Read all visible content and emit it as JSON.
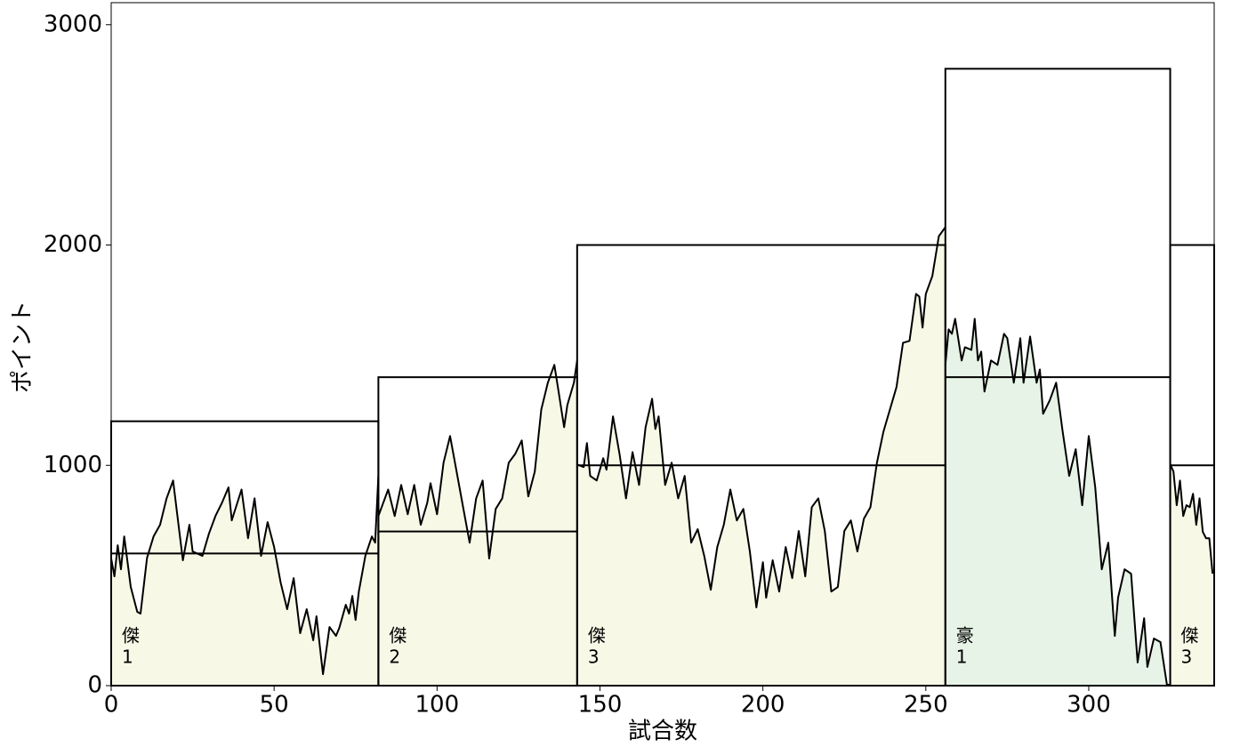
{
  "chart_data": {
    "type": "rank-line",
    "x_label": "試合数",
    "y_label": "ポイント",
    "xlim": [
      0,
      338.5
    ],
    "ylim": [
      0,
      3100
    ],
    "xticks": [
      0,
      50,
      100,
      150,
      200,
      250,
      300
    ],
    "yticks": [
      0,
      1000,
      2000,
      3000
    ],
    "line_color": "#000000",
    "segments": [
      {
        "rank": "傑",
        "level": 1,
        "start": 0,
        "end": 82,
        "top": 1200,
        "base": 600,
        "color": "#f7f8e6",
        "x": [
          0,
          1,
          2,
          3,
          4,
          6,
          8,
          9,
          11,
          13,
          15,
          17,
          19,
          20,
          22,
          24,
          25,
          28,
          30,
          32,
          34,
          36,
          37,
          40,
          42,
          44,
          46,
          48,
          50,
          52,
          54,
          56,
          58,
          60,
          62,
          63,
          65,
          67,
          69,
          70,
          72,
          73,
          74,
          75,
          76,
          78,
          80,
          81,
          82
        ],
        "values": [
          577,
          496,
          637,
          528,
          677,
          448,
          335,
          327,
          580,
          677,
          730,
          850,
          931,
          810,
          569,
          730,
          609,
          589,
          690,
          770,
          830,
          900,
          750,
          890,
          669,
          850,
          589,
          742,
          629,
          468,
          347,
          488,
          238,
          347,
          206,
          315,
          52,
          266,
          226,
          262,
          367,
          327,
          407,
          298,
          427,
          589,
          677,
          649,
          952
        ]
      },
      {
        "rank": "傑",
        "level": 2,
        "start": 82,
        "end": 143,
        "top": 1400,
        "base": 700,
        "color": "#f7f8e6",
        "x": [
          82,
          83,
          85,
          87,
          89,
          91,
          93,
          95,
          97,
          98,
          100,
          102,
          104,
          106,
          108,
          110,
          112,
          114,
          116,
          118,
          120,
          122,
          124,
          126,
          128,
          130,
          132,
          134,
          136,
          137,
          139,
          140,
          142,
          143
        ],
        "values": [
          770,
          810,
          890,
          770,
          911,
          778,
          911,
          730,
          830,
          919,
          778,
          1012,
          1133,
          972,
          810,
          649,
          850,
          931,
          577,
          802,
          850,
          1012,
          1052,
          1113,
          859,
          972,
          1254,
          1375,
          1456,
          1363,
          1173,
          1274,
          1375,
          1476
        ]
      },
      {
        "rank": "傑",
        "level": 3,
        "start": 143,
        "end": 256,
        "top": 2000,
        "base": 1000,
        "color": "#f7f8e6",
        "x": [
          143,
          145,
          146,
          147,
          149,
          151,
          152,
          154,
          156,
          158,
          160,
          162,
          164,
          166,
          167,
          168,
          170,
          172,
          174,
          176,
          178,
          180,
          182,
          184,
          186,
          188,
          190,
          192,
          194,
          196,
          198,
          200,
          201,
          203,
          205,
          207,
          209,
          211,
          213,
          215,
          217,
          219,
          221,
          223,
          225,
          227,
          229,
          231,
          233,
          235,
          237,
          239,
          241,
          243,
          245,
          247,
          248,
          249,
          250,
          252,
          254,
          256
        ],
        "values": [
          1004,
          992,
          1101,
          952,
          931,
          1032,
          980,
          1222,
          1052,
          850,
          1060,
          911,
          1173,
          1302,
          1165,
          1222,
          911,
          1012,
          850,
          952,
          649,
          710,
          589,
          435,
          629,
          730,
          890,
          750,
          802,
          609,
          355,
          560,
          399,
          569,
          427,
          629,
          488,
          702,
          496,
          810,
          850,
          702,
          427,
          448,
          702,
          750,
          609,
          758,
          810,
          1012,
          1153,
          1254,
          1355,
          1556,
          1565,
          1778,
          1766,
          1625,
          1778,
          1859,
          2040,
          2081
        ]
      },
      {
        "rank": "豪",
        "level": 1,
        "start": 256,
        "end": 325,
        "top": 2800,
        "base": 1400,
        "color": "#e6f3e6",
        "x": [
          256,
          257,
          258,
          259,
          261,
          262,
          264,
          265,
          266,
          267,
          268,
          270,
          272,
          274,
          275,
          277,
          279,
          280,
          282,
          284,
          285,
          286,
          288,
          290,
          292,
          294,
          296,
          298,
          300,
          302,
          304,
          306,
          308,
          309,
          311,
          313,
          315,
          317,
          318,
          320,
          322,
          324,
          325
        ],
        "values": [
          1456,
          1617,
          1597,
          1665,
          1476,
          1536,
          1524,
          1665,
          1476,
          1516,
          1335,
          1476,
          1456,
          1597,
          1577,
          1375,
          1577,
          1375,
          1585,
          1375,
          1435,
          1234,
          1294,
          1375,
          1153,
          952,
          1073,
          819,
          1133,
          899,
          528,
          649,
          226,
          399,
          528,
          508,
          105,
          306,
          85,
          214,
          198,
          4,
          4
        ]
      },
      {
        "rank": "傑",
        "level": 3,
        "start": 325,
        "end": 338.5,
        "top": 2000,
        "base": 1000,
        "color": "#f7f8e6",
        "x": [
          325,
          326,
          327,
          328,
          329,
          330,
          331,
          332,
          333,
          334,
          335,
          336,
          337,
          338
        ],
        "values": [
          1004,
          972,
          819,
          931,
          770,
          819,
          810,
          871,
          730,
          850,
          698,
          669,
          669,
          508
        ]
      }
    ]
  }
}
